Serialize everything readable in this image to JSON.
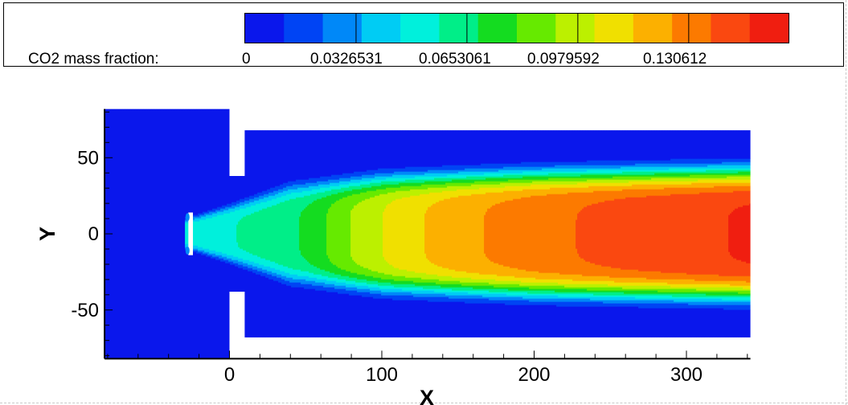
{
  "legend": {
    "title": "CO2 mass fraction:",
    "tick_labels": [
      "0",
      "0.0326531",
      "0.0653061",
      "0.0979592",
      "0.130612"
    ]
  },
  "chart_data": {
    "type": "heatmap",
    "variable": "CO2 mass fraction",
    "xlabel": "X",
    "ylabel": "Y",
    "xlim": [
      -82,
      342
    ],
    "ylim": [
      -82,
      82
    ],
    "x_ticks": [
      0,
      100,
      200,
      300
    ],
    "y_ticks": [
      50,
      0,
      -50
    ],
    "x_tick_labels": [
      "0",
      "100",
      "200",
      "300"
    ],
    "y_tick_labels": [
      "50",
      "0",
      "-50"
    ],
    "color_scale": {
      "min": 0,
      "max": 0.16,
      "levels": [
        "#0a17ec",
        "#0044f4",
        "#0088f8",
        "#00ccf4",
        "#00f0dc",
        "#00ee88",
        "#14dc20",
        "#66ea00",
        "#bcf000",
        "#f0e000",
        "#fcb000",
        "#fc7a00",
        "#fa4810",
        "#f01e10"
      ],
      "labeled_values": [
        0,
        0.0326531,
        0.0653061,
        0.0979592,
        0.130612
      ],
      "divider_values": [
        0.0326531,
        0.0653061,
        0.0979592,
        0.130612
      ]
    },
    "field": {
      "background_value": 0.002,
      "center_value_profile": [
        [
          -27,
          0.05
        ],
        [
          0,
          0.056
        ],
        [
          30,
          0.063
        ],
        [
          50,
          0.07
        ],
        [
          80,
          0.092
        ],
        [
          110,
          0.108
        ],
        [
          150,
          0.122
        ],
        [
          200,
          0.133
        ],
        [
          260,
          0.142
        ],
        [
          300,
          0.146
        ],
        [
          342,
          0.15
        ]
      ],
      "mixing_halfwidth_profile": [
        [
          -27,
          10
        ],
        [
          0,
          18
        ],
        [
          40,
          31
        ],
        [
          100,
          37
        ],
        [
          200,
          40
        ],
        [
          342,
          42
        ]
      ]
    },
    "domain": {
      "chamber_x": [
        -82,
        0
      ],
      "chamber_y": [
        -82,
        82
      ],
      "pipe_x": [
        10,
        342
      ],
      "pipe_y": [
        -68,
        68
      ],
      "neck_x": [
        0,
        10
      ],
      "neck_y": [
        -38,
        38
      ],
      "nozzle_x": [
        -27,
        -24
      ],
      "nozzle_y": [
        -14,
        14
      ]
    }
  }
}
